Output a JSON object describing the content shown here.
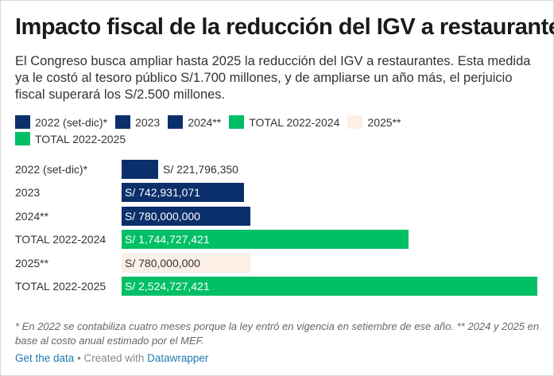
{
  "chart_data": {
    "type": "bar",
    "orientation": "horizontal",
    "title": "Impacto fiscal de la reducción del IGV a restaurantes",
    "subtitle": "El Congreso busca ampliar hasta 2025 la reducción del IGV a restaurantes. Esta medida ya le costó al tesoro público S/1.700 millones, y de ampliarse un año más, el perjuicio fiscal superará los S/2.500 millones.",
    "categories": [
      "2022 (set-dic)*",
      "2023",
      "2024**",
      "TOTAL 2022-2024",
      "2025**",
      "TOTAL 2022-2025"
    ],
    "values": [
      221796350,
      742931071,
      780000000,
      1744727421,
      780000000,
      2524727421
    ],
    "value_labels": [
      "S/ 221,796,350",
      "S/ 742,931,071",
      "S/ 780,000,000",
      "S/ 1,744,727,421",
      "S/ 780,000,000",
      "S/ 2,524,727,421"
    ],
    "colors": [
      "#0b2f6b",
      "#0b2f6b",
      "#0b2f6b",
      "#00bf65",
      "#fcefe6",
      "#00bf65"
    ],
    "legend": [
      {
        "label": "2022 (set-dic)*",
        "color": "#0b2f6b"
      },
      {
        "label": "2023",
        "color": "#0b2f6b"
      },
      {
        "label": "2024**",
        "color": "#0b2f6b"
      },
      {
        "label": "TOTAL 2022-2024",
        "color": "#00bf65"
      },
      {
        "label": "2025**",
        "color": "#fcefe6"
      },
      {
        "label": "TOTAL 2022-2025",
        "color": "#00bf65"
      }
    ],
    "legend_position": "top",
    "xlim": [
      0,
      2524727421
    ],
    "xlabel": "",
    "ylabel": "",
    "grid": false
  },
  "footer": {
    "note": "* En 2022 se contabiliza cuatro meses porque la ley entró en vigencia en setiembre de ese año. ** 2024 y 2025 en base al costo anual estimado por el MEF.",
    "get_data": "Get the data",
    "created_with": " • Created with ",
    "tool": "Datawrapper"
  }
}
